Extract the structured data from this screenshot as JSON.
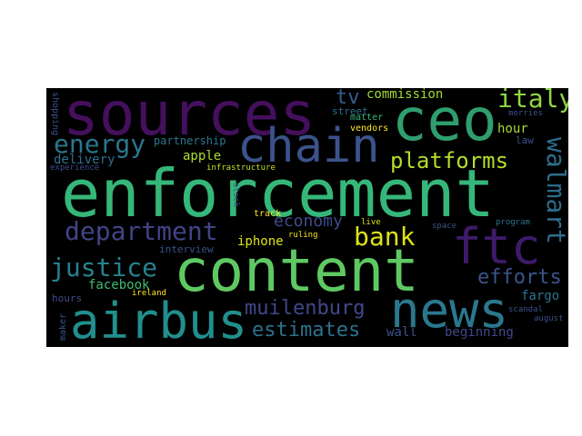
{
  "colors": {
    "background": "#000000",
    "page": "#ffffff"
  },
  "words": {
    "enforcement": "enforcement",
    "content": "content",
    "sources": "sources",
    "ceo": "ceo",
    "chain": "chain",
    "airbus": "airbus",
    "news": "news",
    "ftc": "ftc",
    "justice": "justice",
    "department": "department",
    "energy": "energy",
    "platforms": "platforms",
    "walmart": "walmart",
    "bank": "bank",
    "italy": "italy",
    "muilenburg": "muilenburg",
    "estimates": "estimates",
    "efforts": "efforts",
    "economy": "economy",
    "commission": "commission",
    "tv": "tv",
    "iphone": "iphone",
    "facebook": "facebook",
    "fargo": "fargo",
    "hour": "hour",
    "delivery": "delivery",
    "partnership": "partnership",
    "apple": "apple",
    "wall": "wall",
    "beginning": "beginning",
    "hours": "hours",
    "interview": "interview",
    "street": "street",
    "matter": "matter",
    "vendors": "vendors",
    "law": "law",
    "morries": "morries",
    "experience": "experience",
    "infrastructure": "infrastructure",
    "track": "track",
    "ruling": "ruling",
    "live": "live",
    "space": "space",
    "program": "program",
    "ireland": "ireland",
    "maker": "maker",
    "scandal": "scandal",
    "august": "august",
    "shopping": "shopping",
    "stock": "stock"
  }
}
